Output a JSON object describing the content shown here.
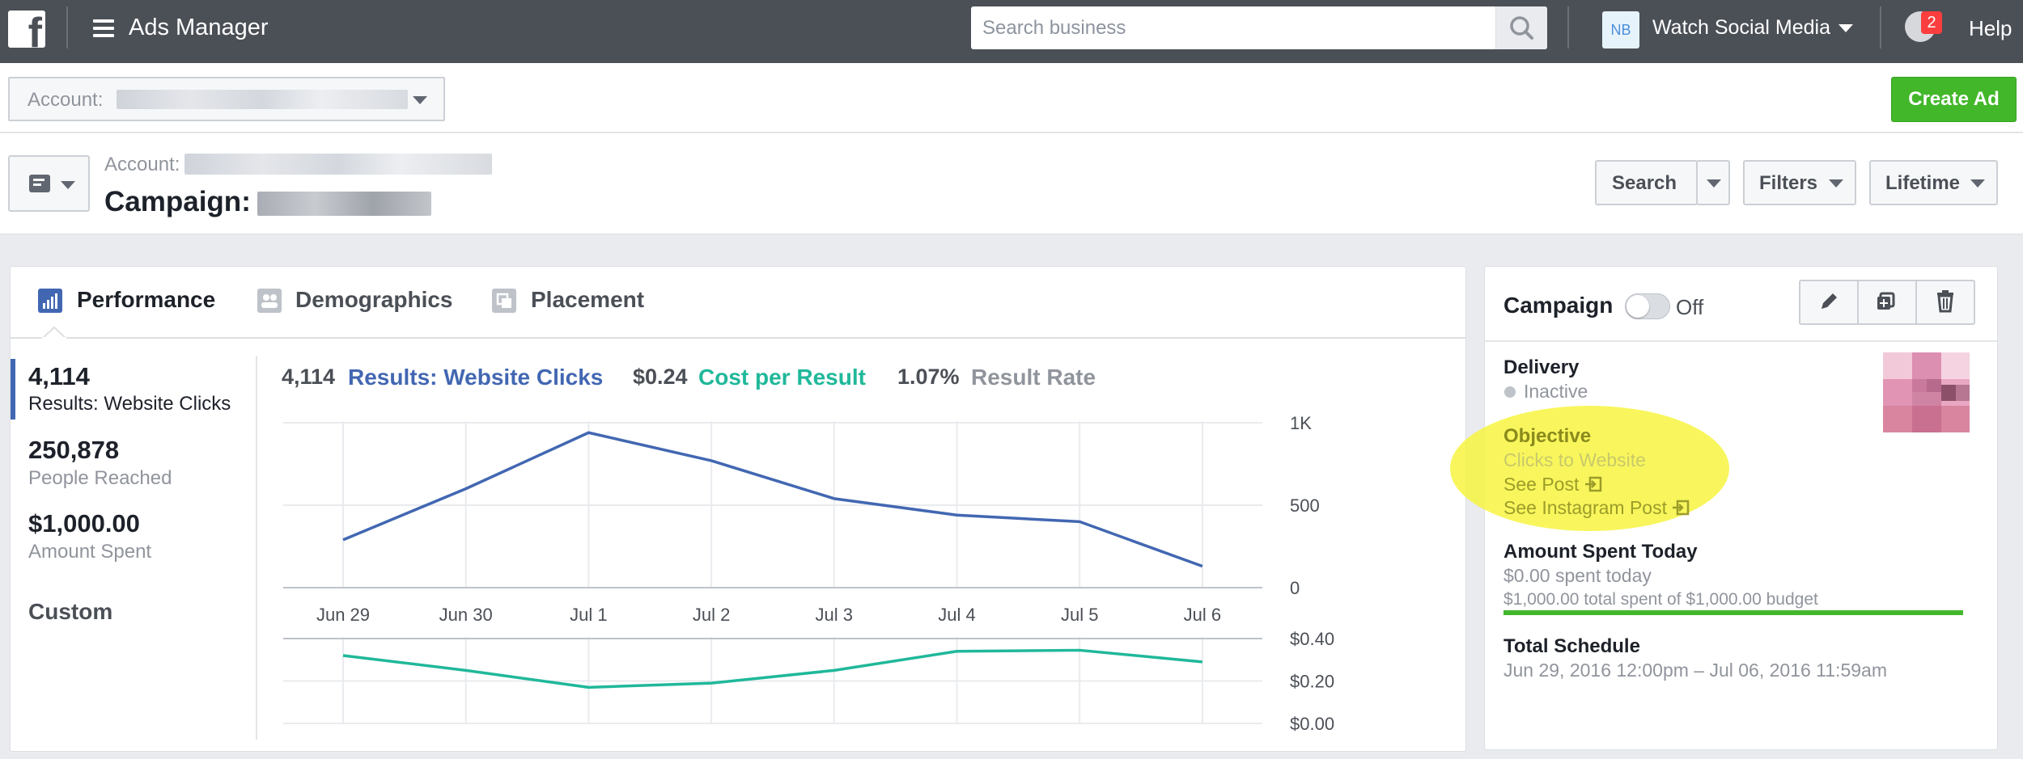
{
  "topbar": {
    "app_title": "Ads Manager",
    "search_placeholder": "Search business",
    "business_initials": "NB",
    "business_name": "Watch Social Media",
    "notification_count": "2",
    "help_label": "Help"
  },
  "account_row": {
    "account_label": "Account:",
    "create_ad_label": "Create Ad"
  },
  "campaign_header": {
    "account_label": "Account:",
    "campaign_label": "Campaign:",
    "search_label": "Search",
    "filters_label": "Filters",
    "lifetime_label": "Lifetime"
  },
  "tabs": [
    {
      "label": "Performance",
      "icon": "bar-chart-icon",
      "active": true
    },
    {
      "label": "Demographics",
      "icon": "people-icon",
      "active": false
    },
    {
      "label": "Placement",
      "icon": "placement-icon",
      "active": false
    }
  ],
  "metrics": [
    {
      "value": "4,114",
      "label": "Results: Website Clicks"
    },
    {
      "value": "250,878",
      "label": "People Reached"
    },
    {
      "value": "$1,000.00",
      "label": "Amount Spent"
    }
  ],
  "custom_label": "Custom",
  "legend": {
    "results_value": "4,114",
    "results_label": "Results: Website Clicks",
    "cost_value": "$0.24",
    "cost_label": "Cost per Result",
    "rate_value": "1.07%",
    "rate_label": "Result Rate"
  },
  "colors": {
    "results": "#4267b2",
    "cost": "#20b89a",
    "rate": "#90949c",
    "accent_blue": "#4267b2",
    "create_green": "#42b72a",
    "highlight": "#f7f53f"
  },
  "chart_data": [
    {
      "type": "line",
      "categories": [
        "Jun 29",
        "Jun 30",
        "Jul 1",
        "Jul 2",
        "Jul 3",
        "Jul 4",
        "Jul 5",
        "Jul 6"
      ],
      "series": [
        {
          "name": "Results: Website Clicks",
          "values": [
            290,
            600,
            940,
            770,
            540,
            440,
            400,
            130
          ]
        }
      ],
      "yticks": [
        "1K",
        "500",
        "0"
      ],
      "ylim": [
        0,
        1000
      ],
      "grid": true
    },
    {
      "type": "line",
      "categories": [
        "Jun 29",
        "Jun 30",
        "Jul 1",
        "Jul 2",
        "Jul 3",
        "Jul 4",
        "Jul 5",
        "Jul 6"
      ],
      "series": [
        {
          "name": "Cost per Result",
          "values": [
            0.32,
            0.25,
            0.17,
            0.19,
            0.25,
            0.34,
            0.345,
            0.29
          ]
        }
      ],
      "yticks": [
        "$0.40",
        "$0.20",
        "$0.00"
      ],
      "ylim": [
        0,
        0.4
      ],
      "grid": true
    }
  ],
  "right_panel": {
    "campaign_label": "Campaign",
    "toggle_state": "Off",
    "delivery_label": "Delivery",
    "delivery_status": "Inactive",
    "objective_label": "Objective",
    "objective_value": "Clicks to Website",
    "see_post": "See Post",
    "see_instagram_post": "See Instagram Post",
    "amount_today_label": "Amount Spent Today",
    "spent_today": "$0.00 spent today",
    "total_spent": "$1,000.00 total spent of $1,000.00 budget",
    "budget_progress": 1.0,
    "schedule_label": "Total Schedule",
    "schedule_value": "Jun 29, 2016 12:00pm – Jul 06, 2016 11:59am"
  }
}
